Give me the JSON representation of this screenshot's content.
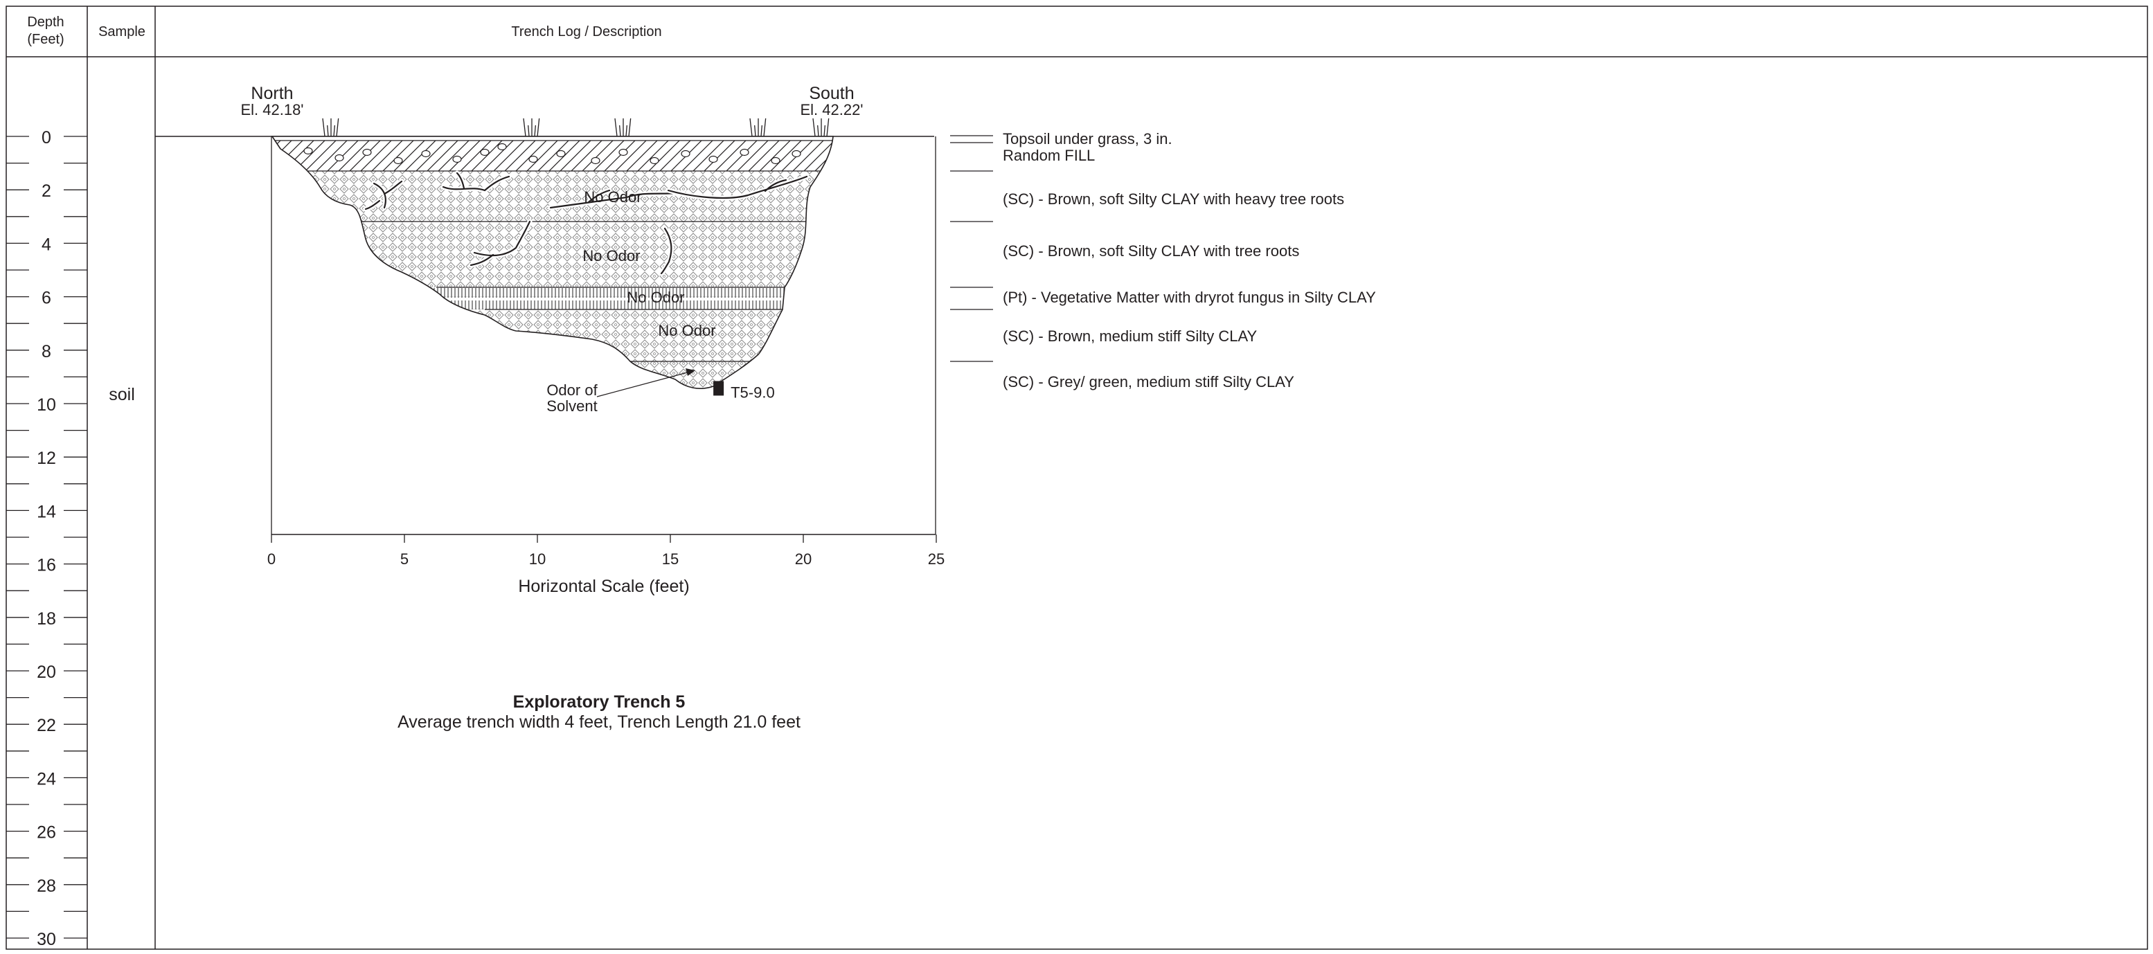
{
  "header": {
    "depth_label_line1": "Depth",
    "depth_label_line2": "(Feet)",
    "sample_label": "Sample",
    "log_label": "Trench Log / Description"
  },
  "depth_ticks": [
    "0",
    "2",
    "4",
    "6",
    "8",
    "10",
    "12",
    "14",
    "16",
    "18",
    "20",
    "22",
    "24",
    "26",
    "28",
    "30"
  ],
  "sample": {
    "label": "soil"
  },
  "trench": {
    "north_label": "North",
    "north_elevation": "El. 42.18'",
    "south_label": "South",
    "south_elevation": "El. 42.22'",
    "odor_labels": [
      "No Odor",
      "No Odor",
      "No Odor",
      "No Odor"
    ],
    "sample_callout_line1": "Odor of",
    "sample_callout_line2": "Solvent",
    "sample_id": "T5-9.0",
    "sample_depth_ft": 9.7,
    "sample_horizontal_ft": 16.8
  },
  "horizontal_scale": {
    "ticks": [
      "0",
      "5",
      "10",
      "15",
      "20",
      "25"
    ],
    "label": "Horizontal Scale (feet)"
  },
  "strata": [
    {
      "description": "Topsoil under grass, 3 in.",
      "top_ft": 0,
      "bottom_ft": 0.25
    },
    {
      "description": "Random FILL",
      "top_ft": 0.25,
      "bottom_ft": 1.3
    },
    {
      "description": "(SC) - Brown, soft Silty CLAY with heavy tree roots",
      "top_ft": 1.3,
      "bottom_ft": 3.2
    },
    {
      "description": "(SC) - Brown, soft Silty CLAY with tree roots",
      "top_ft": 3.2,
      "bottom_ft": 5.7
    },
    {
      "description": "(Pt) - Vegetative Matter with dryrot fungus in Silty CLAY",
      "top_ft": 5.7,
      "bottom_ft": 6.5
    },
    {
      "description": "(SC) - Brown, medium stiff Silty CLAY",
      "top_ft": 6.5,
      "bottom_ft": 8.5
    },
    {
      "description": "(SC) - Grey/ green, medium stiff Silty CLAY",
      "top_ft": 8.5,
      "bottom_ft": 10.0
    }
  ],
  "caption": {
    "title": "Exploratory Trench 5",
    "subtitle": "Average trench width 4 feet, Trench Length 21.0 feet"
  }
}
